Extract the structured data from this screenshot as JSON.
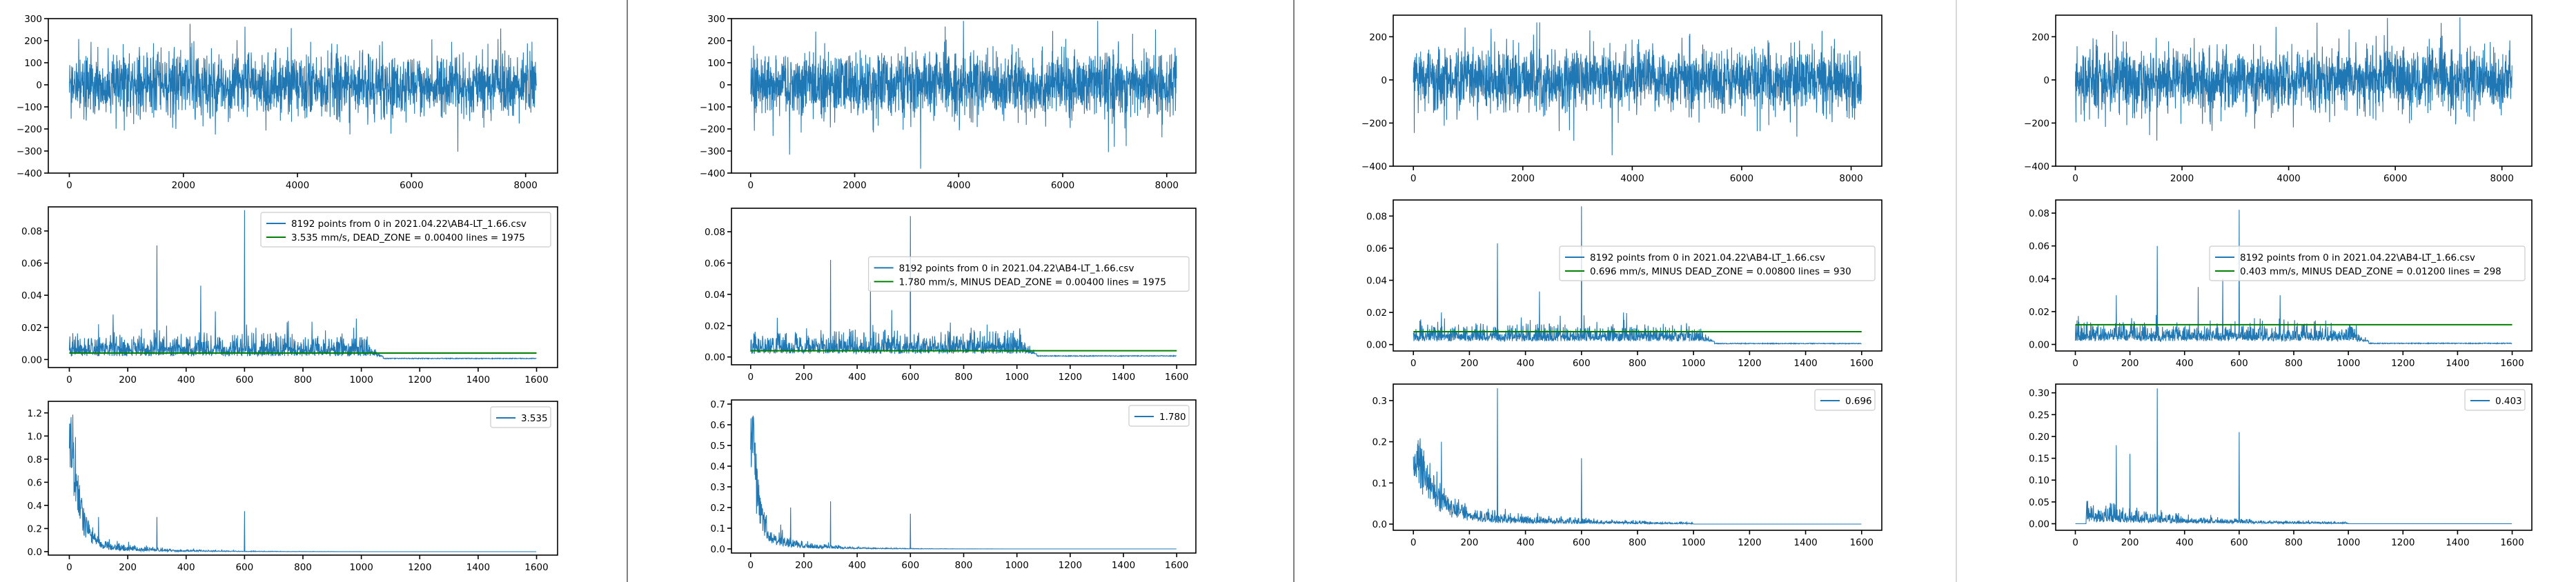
{
  "colors": {
    "series": "#1f77b4",
    "threshold": "#008000",
    "frame": "#000000"
  },
  "chart_data": [
    {
      "panel": 1,
      "charts": [
        {
          "type": "line",
          "role": "time-signal",
          "seed": 11,
          "n": 8192,
          "xlim": [
            0,
            8192
          ],
          "ylim": [
            -400,
            300
          ],
          "xticks": [
            0,
            2000,
            4000,
            6000,
            8000
          ],
          "yticks": [
            -400,
            -300,
            -200,
            -100,
            0,
            100,
            200,
            300
          ],
          "series": [
            {
              "values_generated": true
            }
          ]
        },
        {
          "type": "line",
          "role": "spectrum",
          "seed": 12,
          "n": 1600,
          "xlim": [
            0,
            1600
          ],
          "ylim": [
            -0.005,
            0.095
          ],
          "xticks": [
            0,
            200,
            400,
            600,
            800,
            1000,
            1200,
            1400,
            1600
          ],
          "yticks": [
            0.0,
            0.02,
            0.04,
            0.06,
            0.08
          ],
          "floor": 0.004,
          "noise": 0.004,
          "cutoff": 1075,
          "peaks": [
            [
              100,
              0.022
            ],
            [
              300,
              0.071
            ],
            [
              450,
              0.046
            ],
            [
              600,
              0.093
            ],
            [
              500,
              0.03
            ],
            [
              750,
              0.024
            ],
            [
              150,
              0.028
            ]
          ],
          "threshold": 0.004,
          "legend": {
            "position": "upper right",
            "entries": [
              "8192 points from 0  in  2021.04.22\\AB4-LT_1.66.csv",
              "3.535 mm/s,  DEAD_ZONE = 0.00400     lines = 1975"
            ]
          }
        },
        {
          "type": "line",
          "role": "decay",
          "seed": 13,
          "n": 1600,
          "xlim": [
            0,
            1600
          ],
          "ylim": [
            -0.03,
            1.3
          ],
          "xticks": [
            0,
            200,
            400,
            600,
            800,
            1000,
            1200,
            1400,
            1600
          ],
          "yticks": [
            0.0,
            0.2,
            0.4,
            0.6,
            0.8,
            1.0,
            1.2
          ],
          "a": 1.2,
          "tau": 30,
          "base": 0.05,
          "cutoff": 1000,
          "peaks": [
            [
              300,
              0.3
            ],
            [
              600,
              0.35
            ],
            [
              100,
              0.3
            ]
          ],
          "legend": {
            "position": "upper right",
            "entries": [
              "3.535"
            ]
          }
        }
      ]
    },
    {
      "panel": 2,
      "charts": [
        {
          "type": "line",
          "role": "time-signal",
          "seed": 21,
          "n": 8192,
          "xlim": [
            0,
            8192
          ],
          "ylim": [
            -400,
            300
          ],
          "xticks": [
            0,
            2000,
            4000,
            6000,
            8000
          ],
          "yticks": [
            -400,
            -300,
            -200,
            -100,
            0,
            100,
            200,
            300
          ],
          "series": [
            {
              "values_generated": true
            }
          ]
        },
        {
          "type": "line",
          "role": "spectrum",
          "seed": 22,
          "n": 1600,
          "xlim": [
            0,
            1600
          ],
          "ylim": [
            -0.005,
            0.095
          ],
          "xticks": [
            0,
            200,
            400,
            600,
            800,
            1000,
            1200,
            1400,
            1600
          ],
          "yticks": [
            0.0,
            0.02,
            0.04,
            0.06,
            0.08
          ],
          "floor": 0.004,
          "noise": 0.004,
          "cutoff": 1075,
          "peaks": [
            [
              100,
              0.025
            ],
            [
              300,
              0.062
            ],
            [
              450,
              0.048
            ],
            [
              600,
              0.09
            ],
            [
              530,
              0.03
            ],
            [
              750,
              0.022
            ]
          ],
          "threshold": 0.004,
          "legend": {
            "position": "center right",
            "entries": [
              "8192 points from 0  in  2021.04.22\\AB4-LT_1.66.csv",
              "1.780 mm/s,  MINUS  DEAD_ZONE = 0.00400     lines = 1975"
            ]
          }
        },
        {
          "type": "line",
          "role": "decay",
          "seed": 23,
          "n": 1600,
          "xlim": [
            0,
            1600
          ],
          "ylim": [
            -0.02,
            0.72
          ],
          "xticks": [
            0,
            200,
            400,
            600,
            800,
            1000,
            1200,
            1400,
            1600
          ],
          "yticks": [
            0.0,
            0.1,
            0.2,
            0.3,
            0.4,
            0.5,
            0.6,
            0.7
          ],
          "a": 0.65,
          "tau": 25,
          "base": 0.04,
          "cutoff": 1000,
          "peaks": [
            [
              300,
              0.23
            ],
            [
              600,
              0.17
            ],
            [
              150,
              0.2
            ]
          ],
          "legend": {
            "position": "upper right",
            "entries": [
              "1.780"
            ]
          }
        }
      ]
    },
    {
      "panel": 3,
      "charts": [
        {
          "type": "line",
          "role": "time-signal",
          "seed": 31,
          "n": 8192,
          "xlim": [
            0,
            8192
          ],
          "ylim": [
            -400,
            300
          ],
          "xticks": [
            0,
            2000,
            4000,
            6000,
            8000
          ],
          "yticks": [
            -400,
            -200,
            0,
            200
          ],
          "series": [
            {
              "values_generated": true
            }
          ]
        },
        {
          "type": "line",
          "role": "spectrum",
          "seed": 32,
          "n": 1600,
          "xlim": [
            0,
            1600
          ],
          "ylim": [
            -0.004,
            0.09
          ],
          "xticks": [
            0,
            200,
            400,
            600,
            800,
            1000,
            1200,
            1400,
            1600
          ],
          "yticks": [
            0.0,
            0.02,
            0.04,
            0.06,
            0.08
          ],
          "floor": 0.004,
          "noise": 0.003,
          "cutoff": 1075,
          "peaks": [
            [
              100,
              0.02
            ],
            [
              300,
              0.063
            ],
            [
              450,
              0.033
            ],
            [
              600,
              0.086
            ],
            [
              750,
              0.02
            ]
          ],
          "threshold": 0.008,
          "legend": {
            "position": "center right",
            "entries": [
              "8192 points from 0  in  2021.04.22\\AB4-LT_1.66.csv",
              "0.696 mm/s,  MINUS  DEAD_ZONE = 0.00800     lines = 930"
            ]
          }
        },
        {
          "type": "line",
          "role": "decay",
          "seed": 33,
          "n": 1600,
          "xlim": [
            0,
            1600
          ],
          "ylim": [
            -0.015,
            0.34
          ],
          "xticks": [
            0,
            200,
            400,
            600,
            800,
            1000,
            1200,
            1400,
            1600
          ],
          "yticks": [
            0.0,
            0.1,
            0.2,
            0.3
          ],
          "a": 0.18,
          "tau": 60,
          "base": 0.02,
          "cutoff": 1000,
          "peaks": [
            [
              300,
              0.33
            ],
            [
              600,
              0.16
            ],
            [
              100,
              0.2
            ]
          ],
          "legend": {
            "position": "upper right",
            "entries": [
              "0.696"
            ]
          }
        }
      ]
    },
    {
      "panel": 4,
      "charts": [
        {
          "type": "line",
          "role": "time-signal",
          "seed": 41,
          "n": 8192,
          "xlim": [
            0,
            8192
          ],
          "ylim": [
            -400,
            300
          ],
          "xticks": [
            0,
            2000,
            4000,
            6000,
            8000
          ],
          "yticks": [
            -400,
            -200,
            0,
            200
          ],
          "series": [
            {
              "values_generated": true
            }
          ]
        },
        {
          "type": "line",
          "role": "spectrum",
          "seed": 42,
          "n": 1600,
          "xlim": [
            0,
            1600
          ],
          "ylim": [
            -0.004,
            0.088
          ],
          "xticks": [
            0,
            200,
            400,
            600,
            800,
            1000,
            1200,
            1400,
            1600
          ],
          "yticks": [
            0.0,
            0.02,
            0.04,
            0.06,
            0.08
          ],
          "floor": 0.004,
          "noise": 0.003,
          "cutoff": 1075,
          "peaks": [
            [
              150,
              0.03
            ],
            [
              300,
              0.06
            ],
            [
              450,
              0.035
            ],
            [
              600,
              0.082
            ],
            [
              750,
              0.03
            ],
            [
              540,
              0.04
            ]
          ],
          "threshold": 0.012,
          "legend": {
            "position": "center right",
            "entries": [
              "8192 points from 0  in  2021.04.22\\AB4-LT_1.66.csv",
              "0.403 mm/s,  MINUS  DEAD_ZONE = 0.01200     lines = 298"
            ]
          }
        },
        {
          "type": "line",
          "role": "decay",
          "seed": 43,
          "n": 1600,
          "xlim": [
            0,
            1600
          ],
          "ylim": [
            -0.015,
            0.32
          ],
          "xticks": [
            0,
            200,
            400,
            600,
            800,
            1000,
            1200,
            1400,
            1600
          ],
          "yticks": [
            0.0,
            0.05,
            0.1,
            0.15,
            0.2,
            0.25,
            0.3
          ],
          "a": 0.0,
          "tau": 60,
          "base": 0.015,
          "cutoff": 1000,
          "start": 40,
          "peaks": [
            [
              300,
              0.31
            ],
            [
              600,
              0.21
            ],
            [
              150,
              0.18
            ],
            [
              200,
              0.16
            ]
          ],
          "legend": {
            "position": "upper right",
            "entries": [
              "0.403"
            ]
          }
        }
      ]
    }
  ]
}
